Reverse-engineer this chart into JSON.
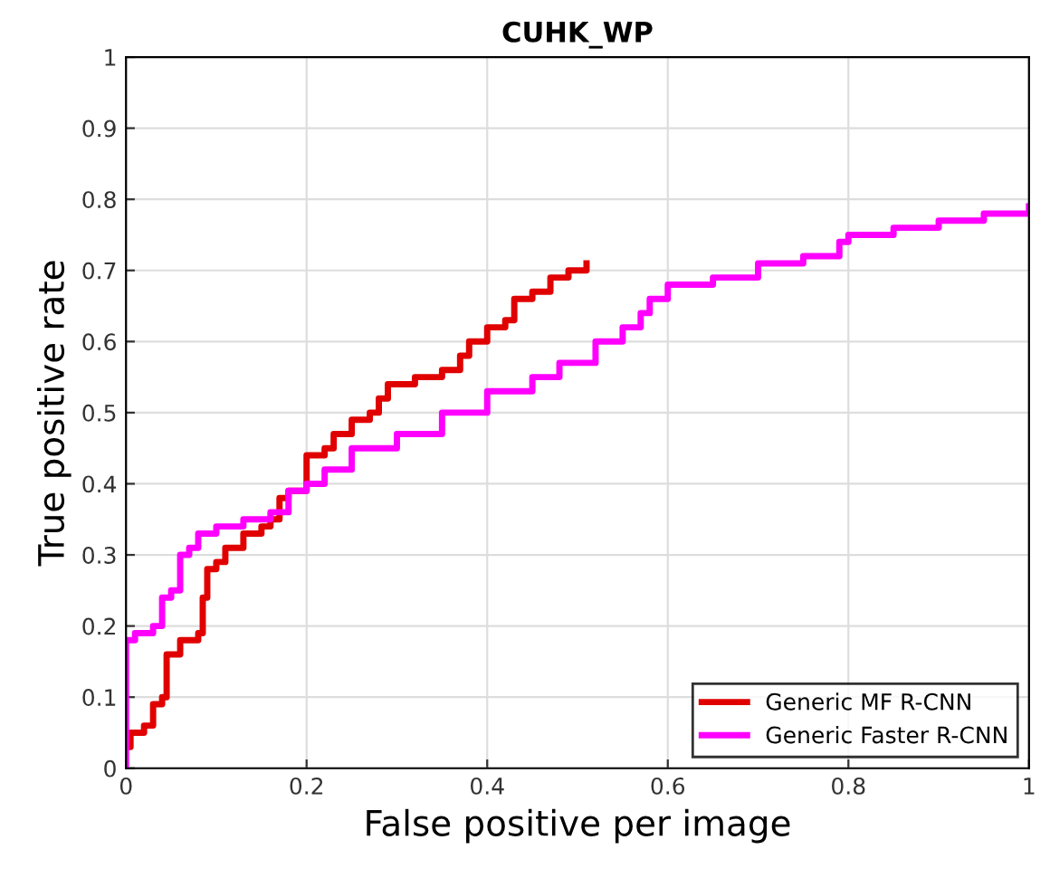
{
  "chart_data": {
    "type": "step",
    "title": "CUHK_WP",
    "xlabel": "False positive per image",
    "ylabel": "True positive rate",
    "xlim": [
      0,
      1
    ],
    "ylim": [
      0,
      1
    ],
    "xticks": [
      0,
      0.2,
      0.4,
      0.6,
      0.8,
      1
    ],
    "yticks": [
      0,
      0.1,
      0.2,
      0.3,
      0.4,
      0.5,
      0.6,
      0.7,
      0.8,
      0.9,
      1
    ],
    "grid": true,
    "legend": "lower right",
    "line_style": "solid",
    "marker": "none",
    "series": [
      {
        "name": "Generic MF R-CNN",
        "color": "#e00000",
        "x": [
          0,
          0.005,
          0.02,
          0.03,
          0.04,
          0.045,
          0.06,
          0.08,
          0.085,
          0.09,
          0.1,
          0.11,
          0.13,
          0.15,
          0.16,
          0.17,
          0.18,
          0.2,
          0.2,
          0.22,
          0.23,
          0.25,
          0.27,
          0.28,
          0.29,
          0.32,
          0.35,
          0.37,
          0.38,
          0.4,
          0.42,
          0.43,
          0.45,
          0.47,
          0.49,
          0.51
        ],
        "values": [
          0.03,
          0.05,
          0.06,
          0.09,
          0.1,
          0.16,
          0.18,
          0.19,
          0.24,
          0.28,
          0.29,
          0.31,
          0.33,
          0.34,
          0.35,
          0.38,
          0.39,
          0.39,
          0.44,
          0.45,
          0.47,
          0.49,
          0.5,
          0.52,
          0.54,
          0.55,
          0.56,
          0.58,
          0.6,
          0.62,
          0.63,
          0.66,
          0.67,
          0.69,
          0.7,
          0.71
        ]
      },
      {
        "name": "Generic Faster R-CNN",
        "color": "#ff00ff",
        "x": [
          0,
          0,
          0.01,
          0.03,
          0.04,
          0.05,
          0.06,
          0.07,
          0.08,
          0.1,
          0.13,
          0.16,
          0.18,
          0.2,
          0.22,
          0.25,
          0.3,
          0.35,
          0.4,
          0.45,
          0.48,
          0.52,
          0.55,
          0.57,
          0.58,
          0.6,
          0.65,
          0.7,
          0.75,
          0.78,
          0.79,
          0.8,
          0.85,
          0.9,
          0.95,
          0.98,
          1.0
        ],
        "values": [
          0,
          0.18,
          0.19,
          0.2,
          0.24,
          0.25,
          0.3,
          0.31,
          0.33,
          0.34,
          0.35,
          0.36,
          0.39,
          0.4,
          0.42,
          0.45,
          0.47,
          0.5,
          0.53,
          0.55,
          0.57,
          0.6,
          0.62,
          0.64,
          0.66,
          0.68,
          0.69,
          0.71,
          0.72,
          0.72,
          0.74,
          0.75,
          0.76,
          0.77,
          0.78,
          0.78,
          0.79
        ]
      }
    ]
  }
}
